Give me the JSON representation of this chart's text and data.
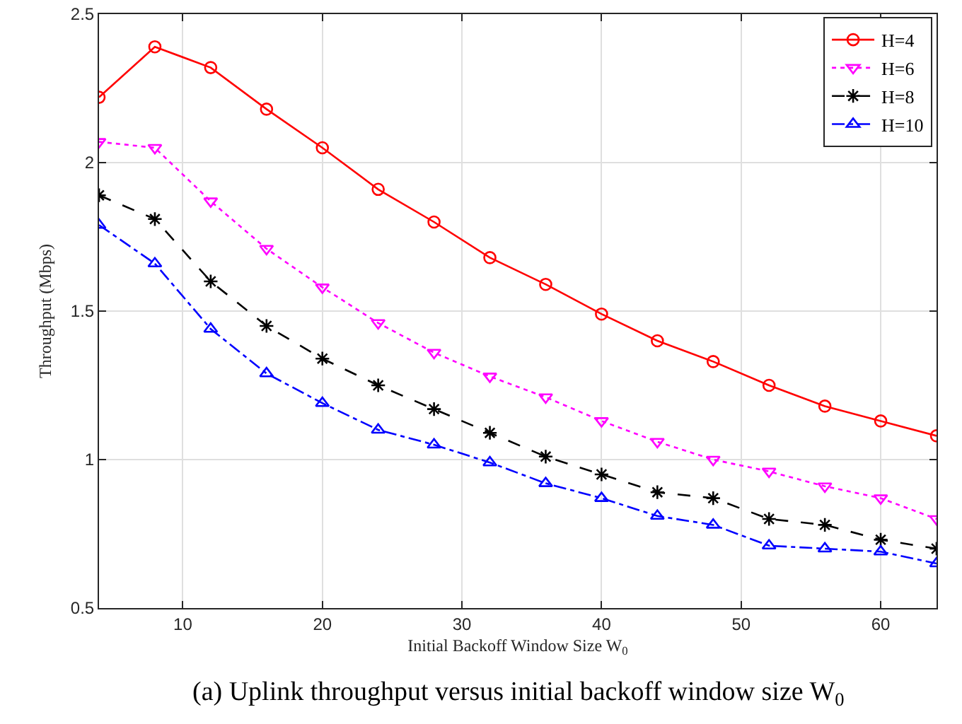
{
  "chart_data": {
    "type": "line",
    "xlabel": "Initial Backoff Window Size W$_{0}$",
    "ylabel": "Throughput (Mbps)",
    "annotations": [
      "(a) Uplink throughput versus initial backoff window size W$_{0}$"
    ],
    "x": [
      4,
      8,
      12,
      16,
      20,
      24,
      28,
      32,
      36,
      40,
      44,
      48,
      52,
      56,
      60,
      64
    ],
    "series": [
      {
        "name": "H=4",
        "color": "#ff0000",
        "marker": "circle",
        "line_style": "solid",
        "values": [
          2.22,
          2.39,
          2.32,
          2.18,
          2.05,
          1.91,
          1.8,
          1.68,
          1.59,
          1.49,
          1.4,
          1.33,
          1.25,
          1.18,
          1.13,
          1.08
        ]
      },
      {
        "name": "H=6",
        "color": "#ff00ff",
        "marker": "triangle-down",
        "line_style": "dotted",
        "values": [
          2.07,
          2.05,
          1.87,
          1.71,
          1.58,
          1.46,
          1.36,
          1.28,
          1.21,
          1.13,
          1.06,
          1.0,
          0.96,
          0.91,
          0.87,
          0.8
        ]
      },
      {
        "name": "H=8",
        "color": "#000000",
        "marker": "cross",
        "line_style": "dashed",
        "values": [
          1.89,
          1.81,
          1.6,
          1.45,
          1.34,
          1.25,
          1.17,
          1.09,
          1.01,
          0.95,
          0.89,
          0.87,
          0.8,
          0.78,
          0.73,
          0.7
        ]
      },
      {
        "name": "H=10",
        "color": "#0000ff",
        "marker": "triangle",
        "line_style": "dashdot",
        "values": [
          1.79,
          1.66,
          1.44,
          1.29,
          1.19,
          1.1,
          1.05,
          0.99,
          0.92,
          0.87,
          0.81,
          0.78,
          0.71,
          0.7,
          0.69,
          0.65
        ]
      }
    ],
    "xlim": [
      4,
      64
    ],
    "xticks": [
      10,
      20,
      30,
      40,
      50,
      60
    ],
    "ylim": [
      0.5,
      2.5
    ],
    "yticks": [
      0.5,
      1,
      1.5,
      2,
      2.5
    ],
    "grid": true,
    "legend": "top right"
  }
}
